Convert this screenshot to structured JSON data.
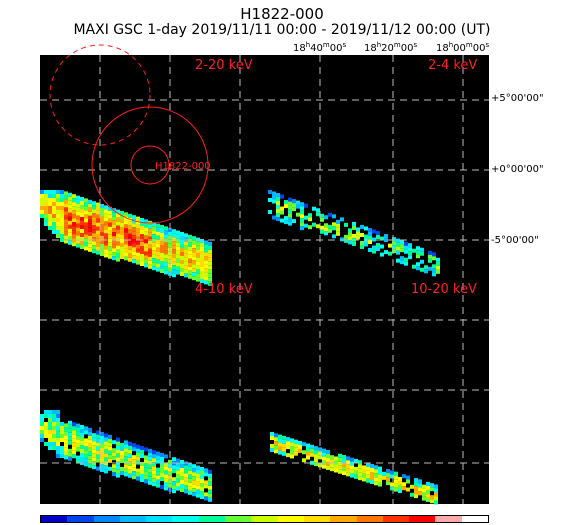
{
  "header": {
    "title": "H1822-000",
    "subtitle": "MAXI GSC 1-day 2019/11/11 00:00 - 2019/11/12 00:00 (UT)"
  },
  "ra_ticks": [
    {
      "h": "18",
      "m": "40",
      "s": "00"
    },
    {
      "h": "18",
      "m": "20",
      "s": "00"
    },
    {
      "h": "18",
      "m": "00",
      "s": "00"
    }
  ],
  "dec_ticks": [
    "+5°00'00\"",
    "+0°00'00\"",
    "-5°00'00\""
  ],
  "panels": {
    "tl": "2-20 keV",
    "tr": "2-4 keV",
    "bl": "4-10 keV",
    "br": "10-20 keV"
  },
  "source_label": "H1822-000",
  "colors": {
    "label": "#ff2020",
    "grid": "#bbbbbb",
    "background": "#000000"
  },
  "colorbar": [
    "#0000cc",
    "#0044ee",
    "#0088ff",
    "#00bbff",
    "#00e0ff",
    "#00ffee",
    "#00ff99",
    "#66ff33",
    "#ccff00",
    "#ffff00",
    "#ffdd00",
    "#ffaa00",
    "#ff7700",
    "#ff3300",
    "#ff0000",
    "#ffaaaa",
    "#ffffff"
  ]
}
